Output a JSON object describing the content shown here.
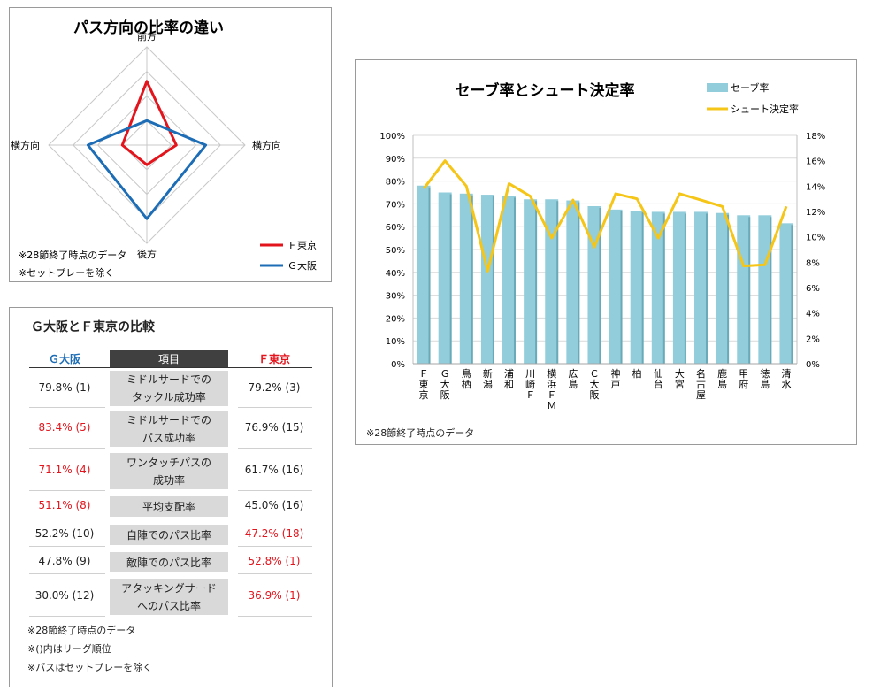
{
  "radar": {
    "title": "パス方向の比率の違い",
    "notes": [
      "※28節終了時点のデータ",
      "※セットプレーを除く"
    ],
    "colors": {
      "f_tokyo": "#e3141c",
      "g_osaka": "#1c6db6",
      "grid": "#c8c8c8"
    }
  },
  "comparison": {
    "title": "Ｇ大阪とＦ東京の比較",
    "headers": {
      "left": "Ｇ大阪",
      "middle": "項目",
      "right": "Ｆ東京"
    },
    "colors": {
      "g_osaka_header": "#1c6db6",
      "f_tokyo_header": "#e3141c",
      "highlight": "#e3141c",
      "middle_header_bg": "#404040"
    },
    "rows": [
      {
        "item": "ミドルサードでの\nタックル成功率",
        "left": "79.8% (1)",
        "right": "79.2% (3)",
        "left_highlight": false,
        "right_highlight": false
      },
      {
        "item": "ミドルサードでの\nパス成功率",
        "left": "83.4% (5)",
        "right": "76.9% (15)",
        "left_highlight": true,
        "right_highlight": false
      },
      {
        "item": "ワンタッチパスの\n成功率",
        "left": "71.1% (4)",
        "right": "61.7% (16)",
        "left_highlight": true,
        "right_highlight": false
      },
      {
        "item": "平均支配率",
        "left": "51.1% (8)",
        "right": "45.0% (16)",
        "left_highlight": true,
        "right_highlight": false
      },
      {
        "item": "自陣でのパス比率",
        "left": "52.2% (10)",
        "right": "47.2% (18)",
        "left_highlight": false,
        "right_highlight": true
      },
      {
        "item": "敵陣でのパス比率",
        "left": "47.8% (9)",
        "right": "52.8% (1)",
        "left_highlight": false,
        "right_highlight": true
      },
      {
        "item": "アタッキングサード\nへのパス比率",
        "left": "30.0% (12)",
        "right": "36.9% (1)",
        "left_highlight": false,
        "right_highlight": true
      }
    ],
    "notes": [
      "※28節終了時点のデータ",
      "※()内はリーグ順位",
      "※パスはセットプレーを除く"
    ]
  },
  "bar_chart": {
    "notes": [
      "※28節終了時点のデータ"
    ],
    "colors": {
      "bar": "#92cddc",
      "bar_shadow": "#6aaab8",
      "line": "#f5c518",
      "grid": "#d9d9d9"
    }
  },
  "chart_data": [
    {
      "type": "radar",
      "axes": [
        "前方",
        "横方向",
        "後方",
        "横方向"
      ],
      "range": [
        0,
        1
      ],
      "rings": 4,
      "series": [
        {
          "name": "Ｆ東京",
          "color": "#e3141c",
          "values": [
            0.65,
            0.3,
            0.2,
            0.25
          ]
        },
        {
          "name": "Ｇ大阪",
          "color": "#1c6db6",
          "values": [
            0.25,
            0.6,
            0.75,
            0.6
          ]
        }
      ],
      "legend_position": "bottom-right"
    },
    {
      "type": "bar",
      "title": "セーブ率とシュート決定率",
      "categories": [
        "Ｆ東京",
        "Ｇ大阪",
        "鳥栖",
        "新潟",
        "浦和",
        "川崎Ｆ",
        "横浜ＦＭ",
        "広島",
        "Ｃ大阪",
        "神戸",
        "柏",
        "仙台",
        "大宮",
        "名古屋",
        "鹿島",
        "甲府",
        "徳島",
        "清水"
      ],
      "series": [
        {
          "name": "セーブ率",
          "type": "bar",
          "axis": "left",
          "values": [
            0.78,
            0.75,
            0.745,
            0.74,
            0.735,
            0.72,
            0.72,
            0.715,
            0.69,
            0.675,
            0.67,
            0.665,
            0.665,
            0.665,
            0.66,
            0.65,
            0.65,
            0.615
          ]
        },
        {
          "name": "シュート決定率",
          "type": "line",
          "axis": "right",
          "values": [
            0.138,
            0.16,
            0.14,
            0.073,
            0.142,
            0.132,
            0.099,
            0.129,
            0.092,
            0.134,
            0.13,
            0.099,
            0.134,
            0.129,
            0.124,
            0.077,
            0.078,
            0.124
          ]
        }
      ],
      "y_left": {
        "min": 0,
        "max": 1.0,
        "step": 0.1,
        "ticks": [
          "0%",
          "10%",
          "20%",
          "30%",
          "40%",
          "50%",
          "60%",
          "70%",
          "80%",
          "90%",
          "100%"
        ]
      },
      "y_right": {
        "min": 0,
        "max": 0.18,
        "step": 0.02,
        "ticks": [
          "0%",
          "2%",
          "4%",
          "6%",
          "8%",
          "10%",
          "12%",
          "14%",
          "16%",
          "18%"
        ]
      },
      "grid": true,
      "legend_position": "top-right"
    }
  ]
}
